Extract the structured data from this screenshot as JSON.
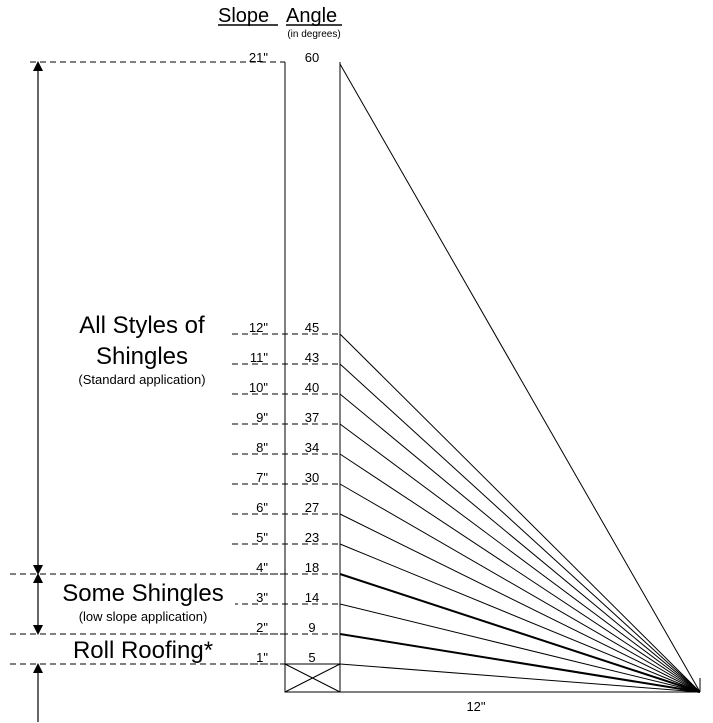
{
  "header": {
    "slope_label": "Slope",
    "angle_label": "Angle",
    "angle_unit": "(in degrees)"
  },
  "base_label": "12\"",
  "rows": [
    {
      "slope": "21\"",
      "angle": "60",
      "rise": 21
    },
    {
      "slope": "12\"",
      "angle": "45",
      "rise": 12
    },
    {
      "slope": "11\"",
      "angle": "43",
      "rise": 11
    },
    {
      "slope": "10\"",
      "angle": "40",
      "rise": 10
    },
    {
      "slope": "9\"",
      "angle": "37",
      "rise": 9
    },
    {
      "slope": "8\"",
      "angle": "34",
      "rise": 8
    },
    {
      "slope": "7\"",
      "angle": "30",
      "rise": 7
    },
    {
      "slope": "6\"",
      "angle": "27",
      "rise": 6
    },
    {
      "slope": "5\"",
      "angle": "23",
      "rise": 5
    },
    {
      "slope": "4\"",
      "angle": "18",
      "rise": 4
    },
    {
      "slope": "3\"",
      "angle": "14",
      "rise": 3
    },
    {
      "slope": "2\"",
      "angle": "9",
      "rise": 2
    },
    {
      "slope": "1\"",
      "angle": "5",
      "rise": 1
    }
  ],
  "zones": {
    "all_styles": {
      "line1": "All Styles of",
      "line2": "Shingles",
      "note": "(Standard application)"
    },
    "some_shingles": {
      "title": "Some Shingles",
      "note": "(low slope application)"
    },
    "roll_roofing": {
      "title": "Roll Roofing*"
    }
  }
}
